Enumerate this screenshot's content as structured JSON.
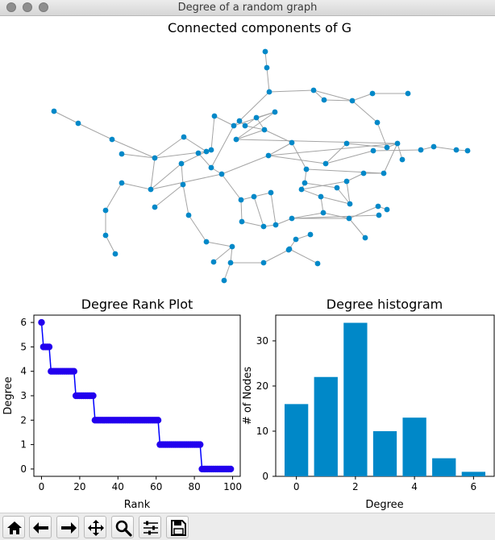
{
  "window": {
    "title": "Degree of a random graph"
  },
  "graph_plot": {
    "title": "Connected components of G"
  },
  "chart_data": [
    {
      "type": "line",
      "title": "Degree Rank Plot",
      "xlabel": "Rank",
      "ylabel": "Degree",
      "xlim": [
        -4,
        104
      ],
      "ylim": [
        -0.3,
        6.3
      ],
      "xticks": [
        0,
        20,
        40,
        60,
        80,
        100
      ],
      "yticks": [
        0,
        1,
        2,
        3,
        4,
        5,
        6
      ],
      "grid": false,
      "color": "#0000ff",
      "marker_color": "#2200ee",
      "series": [
        {
          "segments": [
            {
              "degree": 6,
              "rank_start": 0,
              "rank_end": 0
            },
            {
              "degree": 5,
              "rank_start": 1,
              "rank_end": 4
            },
            {
              "degree": 4,
              "rank_start": 5,
              "rank_end": 17
            },
            {
              "degree": 3,
              "rank_start": 18,
              "rank_end": 27
            },
            {
              "degree": 2,
              "rank_start": 28,
              "rank_end": 61
            },
            {
              "degree": 1,
              "rank_start": 62,
              "rank_end": 83
            },
            {
              "degree": 0,
              "rank_start": 84,
              "rank_end": 99
            }
          ]
        }
      ]
    },
    {
      "type": "bar",
      "title": "Degree histogram",
      "xlabel": "Degree",
      "ylabel": "# of Nodes",
      "categories": [
        0,
        1,
        2,
        3,
        4,
        5,
        6
      ],
      "values": [
        16,
        22,
        34,
        10,
        13,
        4,
        1
      ],
      "xlim": [
        -0.7,
        6.7
      ],
      "ylim": [
        0,
        35.7
      ],
      "xticks": [
        0,
        2,
        4,
        6
      ],
      "yticks": [
        0,
        10,
        20,
        30
      ],
      "grid": false,
      "color": "#0088c8"
    }
  ],
  "toolbar": {
    "buttons": [
      {
        "icon": "home-icon"
      },
      {
        "icon": "back-arrow-icon"
      },
      {
        "icon": "forward-arrow-icon"
      },
      {
        "icon": "pan-icon"
      },
      {
        "icon": "zoom-icon"
      },
      {
        "icon": "subplots-config-icon"
      },
      {
        "icon": "save-icon"
      }
    ]
  }
}
